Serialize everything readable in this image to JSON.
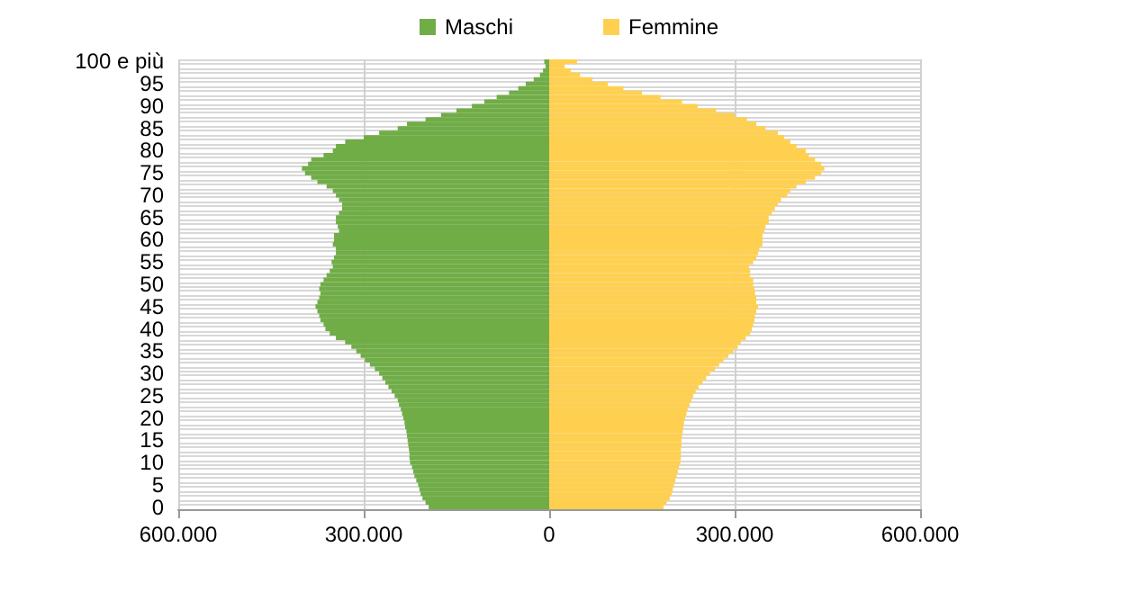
{
  "chart_data": {
    "type": "bar",
    "orientation": "horizontal",
    "stacked": true,
    "grid": true,
    "legend": "top",
    "categories": [
      "100 e più",
      null,
      null,
      null,
      null,
      "95",
      null,
      null,
      null,
      null,
      "90",
      null,
      null,
      null,
      null,
      "85",
      null,
      null,
      null,
      null,
      "80",
      null,
      null,
      null,
      null,
      "75",
      null,
      null,
      null,
      null,
      "70",
      null,
      null,
      null,
      null,
      "65",
      null,
      null,
      null,
      null,
      "60",
      null,
      null,
      null,
      null,
      "55",
      null,
      null,
      null,
      null,
      "50",
      null,
      null,
      null,
      null,
      "45",
      null,
      null,
      null,
      null,
      "40",
      null,
      null,
      null,
      null,
      "35",
      null,
      null,
      null,
      null,
      "30",
      null,
      null,
      null,
      null,
      "25",
      null,
      null,
      null,
      null,
      "20",
      null,
      null,
      null,
      null,
      "15",
      null,
      null,
      null,
      null,
      "10",
      null,
      null,
      null,
      null,
      "5",
      null,
      null,
      null,
      null,
      "0"
    ],
    "series": [
      {
        "name": "Maschi",
        "color": "#70ad47",
        "values": [
          -8000,
          -6000,
          -10000,
          -15000,
          -25000,
          -38000,
          -50000,
          -65000,
          -85000,
          -105000,
          -125000,
          -150000,
          -175000,
          -200000,
          -230000,
          -245000,
          -275000,
          -300000,
          -330000,
          -345000,
          -350000,
          -365000,
          -385000,
          -390000,
          -400000,
          -395000,
          -385000,
          -375000,
          -360000,
          -350000,
          -345000,
          -340000,
          -335000,
          -335000,
          -340000,
          -345000,
          -345000,
          -342000,
          -340000,
          -348000,
          -348000,
          -350000,
          -345000,
          -345000,
          -348000,
          -352000,
          -350000,
          -355000,
          -360000,
          -365000,
          -370000,
          -372000,
          -370000,
          -372000,
          -375000,
          -378000,
          -375000,
          -372000,
          -370000,
          -365000,
          -362000,
          -355000,
          -345000,
          -330000,
          -320000,
          -312000,
          -305000,
          -298000,
          -290000,
          -282000,
          -275000,
          -270000,
          -265000,
          -260000,
          -255000,
          -250000,
          -245000,
          -243000,
          -240000,
          -238000,
          -236000,
          -234000,
          -233000,
          -231000,
          -230000,
          -229000,
          -228000,
          -227000,
          -226000,
          -226000,
          -225000,
          -222000,
          -220000,
          -218000,
          -215000,
          -212000,
          -210000,
          -208000,
          -205000,
          -200000,
          -195000
        ]
      },
      {
        "name": "Femmine",
        "color": "#ffd050",
        "values": [
          45000,
          25000,
          35000,
          50000,
          70000,
          95000,
          120000,
          150000,
          180000,
          215000,
          240000,
          270000,
          300000,
          320000,
          335000,
          350000,
          370000,
          380000,
          390000,
          400000,
          415000,
          420000,
          430000,
          440000,
          445000,
          440000,
          430000,
          415000,
          400000,
          390000,
          385000,
          375000,
          370000,
          365000,
          360000,
          355000,
          355000,
          350000,
          348000,
          345000,
          345000,
          345000,
          340000,
          338000,
          335000,
          330000,
          323000,
          325000,
          325000,
          330000,
          330000,
          332000,
          333000,
          335000,
          335000,
          338000,
          335000,
          333000,
          332000,
          330000,
          328000,
          325000,
          318000,
          310000,
          305000,
          298000,
          290000,
          282000,
          275000,
          268000,
          260000,
          254000,
          248000,
          242000,
          237000,
          233000,
          230000,
          227000,
          224000,
          222000,
          220000,
          218000,
          217000,
          216000,
          215000,
          214000,
          214000,
          213000,
          213000,
          213000,
          212000,
          210000,
          208000,
          206000,
          204000,
          202000,
          200000,
          198000,
          195000,
          190000,
          185000
        ]
      }
    ],
    "xlim": [
      -600000,
      600000
    ],
    "xticks": [
      {
        "value": -600000,
        "label": "600.000"
      },
      {
        "value": -300000,
        "label": "300.000"
      },
      {
        "value": 0,
        "label": "0"
      },
      {
        "value": 300000,
        "label": "300.000"
      },
      {
        "value": 600000,
        "label": "600.000"
      }
    ]
  }
}
